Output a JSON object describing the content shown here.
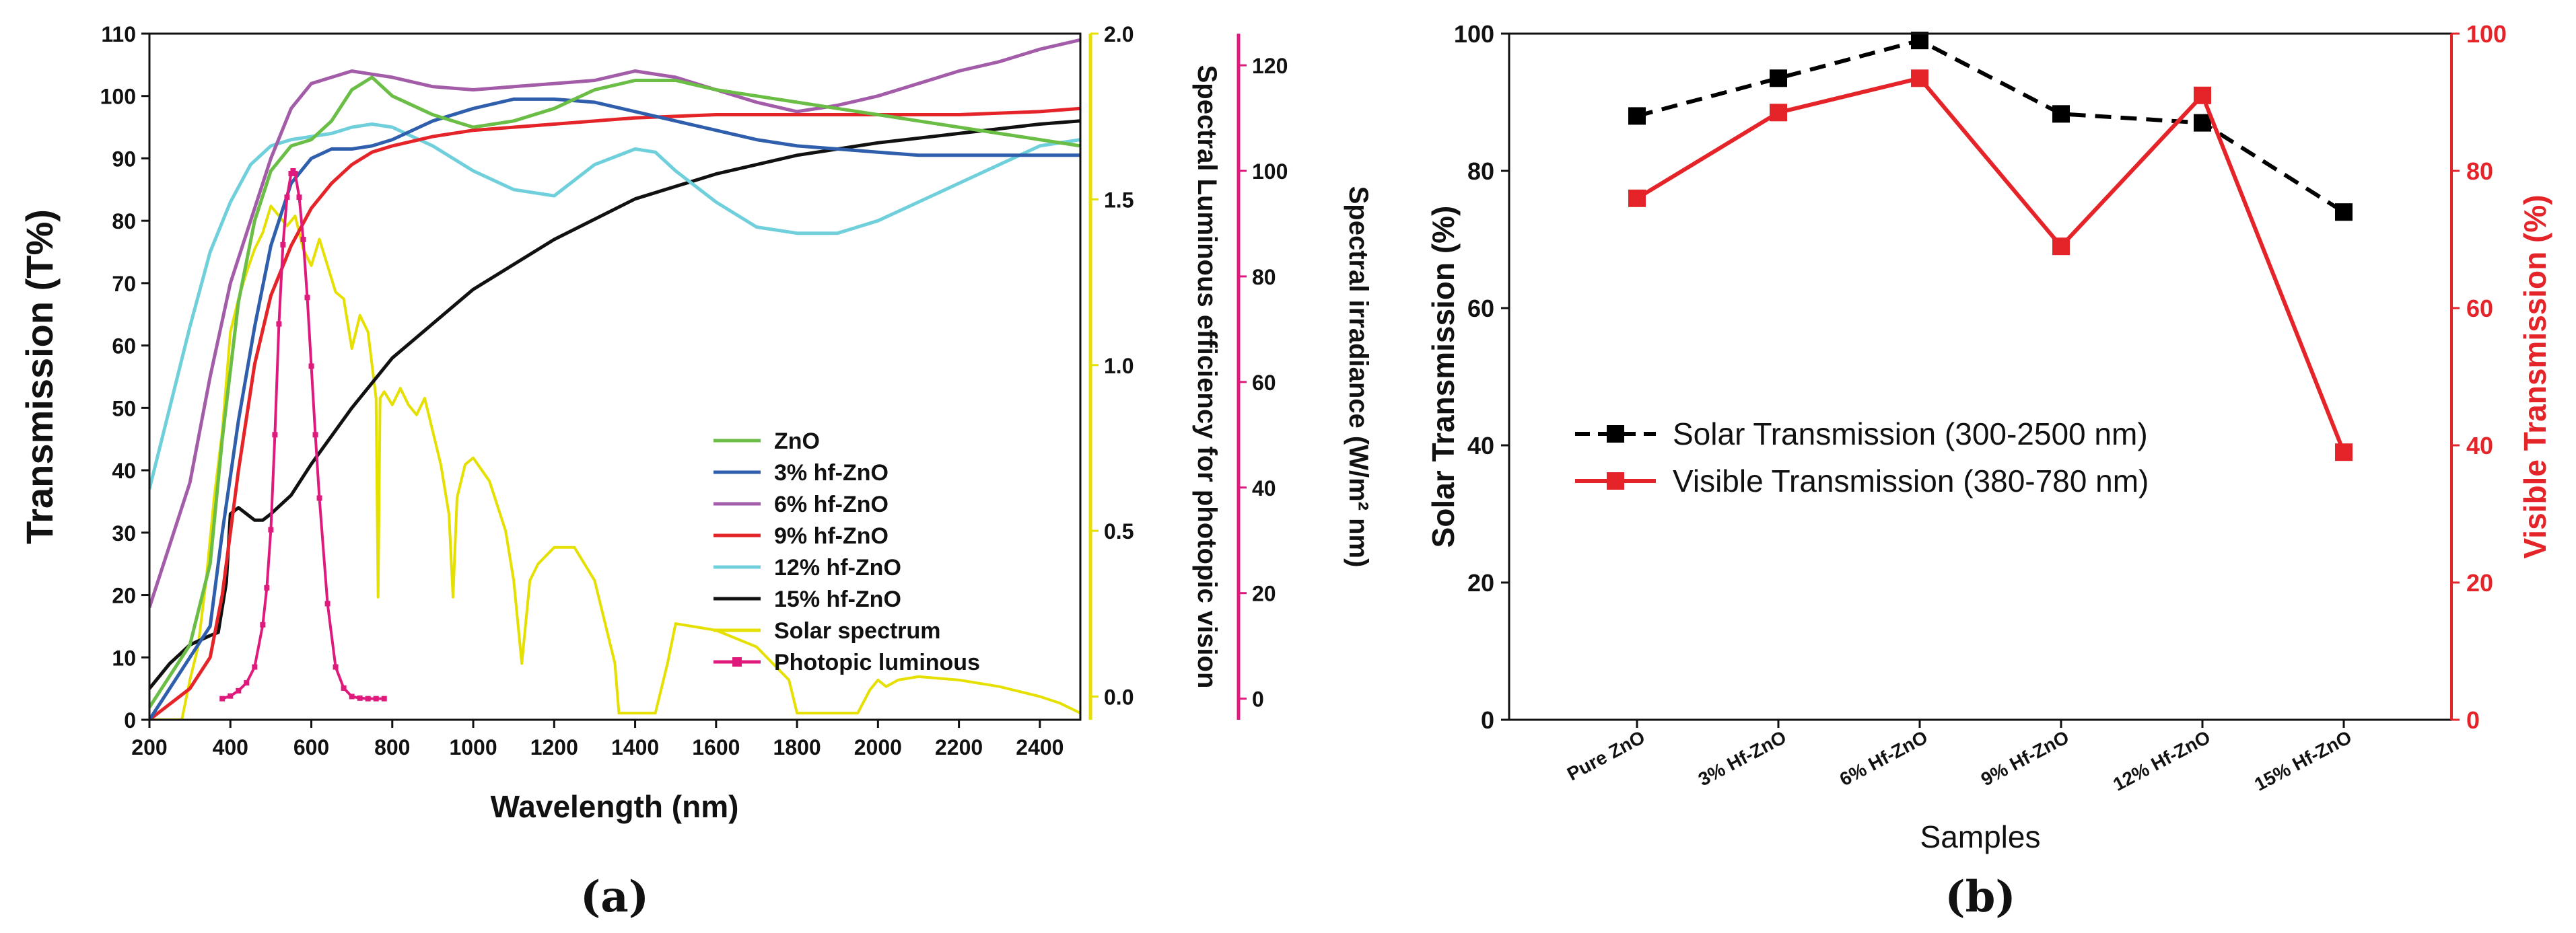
{
  "figure": {
    "panels": [
      {
        "label": "(a)",
        "chart_data": {
          "type": "line",
          "xlabel": "Wavelength (nm)",
          "ylabel": "Transmission (T%)",
          "xlim": [
            200,
            2500
          ],
          "ylim": [
            0,
            110
          ],
          "xticks": [
            200,
            400,
            600,
            800,
            1000,
            1200,
            1400,
            1600,
            1800,
            2000,
            2200,
            2400
          ],
          "yticks": [
            0,
            10,
            20,
            30,
            40,
            50,
            60,
            70,
            80,
            90,
            100,
            110
          ],
          "y2": {
            "label": "Spectral Luminous efficiency for photopic vision",
            "lim": [
              -0.07,
              2.0
            ],
            "ticks": [
              0.0,
              0.5,
              1.0,
              1.5,
              2.0
            ],
            "tick_labels": [
              "0.0",
              "0.5",
              "1.0",
              "1.5",
              "2.0"
            ],
            "color": "#e5e000"
          },
          "y3": {
            "label": "Spectral irradiance  (W/m² nm)",
            "lim": [
              -4,
              126
            ],
            "ticks": [
              0,
              20,
              40,
              60,
              80,
              100,
              120
            ],
            "color": "#e0197d"
          },
          "series": [
            {
              "name": "ZnO",
              "color": "#6abd45",
              "axis": "y",
              "x": [
                200,
                300,
                350,
                380,
                420,
                460,
                500,
                550,
                600,
                650,
                700,
                750,
                800,
                900,
                1000,
                1100,
                1200,
                1300,
                1400,
                1500,
                1600,
                1700,
                1800,
                1900,
                2000,
                2100,
                2200,
                2300,
                2400,
                2500
              ],
              "y": [
                2,
                12,
                25,
                45,
                67,
                80,
                88,
                92,
                93,
                96,
                101,
                103,
                100,
                97,
                95,
                96,
                98,
                101,
                102.5,
                102.5,
                101,
                100,
                99,
                98,
                97,
                96,
                95,
                94,
                93,
                92
              ]
            },
            {
              "name": "3% hf-ZnO",
              "color": "#2f5fac",
              "axis": "y",
              "x": [
                200,
                300,
                350,
                380,
                420,
                460,
                500,
                550,
                600,
                650,
                700,
                750,
                800,
                900,
                1000,
                1100,
                1200,
                1300,
                1400,
                1500,
                1600,
                1700,
                1800,
                1900,
                2000,
                2100,
                2200,
                2300,
                2400,
                2500
              ],
              "y": [
                0,
                10,
                15,
                30,
                48,
                63,
                76,
                86,
                90,
                91.5,
                91.5,
                92,
                93,
                96,
                98,
                99.5,
                99.5,
                99,
                97.5,
                96,
                94.5,
                93,
                92,
                91.5,
                91,
                90.5,
                90.5,
                90.5,
                90.5,
                90.5
              ]
            },
            {
              "name": "6% hf-ZnO",
              "color": "#a35ca8",
              "axis": "y",
              "x": [
                200,
                300,
                350,
                400,
                450,
                500,
                550,
                600,
                650,
                700,
                750,
                800,
                900,
                1000,
                1100,
                1200,
                1300,
                1400,
                1500,
                1600,
                1700,
                1800,
                1900,
                2000,
                2100,
                2200,
                2300,
                2400,
                2500
              ],
              "y": [
                18,
                38,
                55,
                70,
                80,
                90,
                98,
                102,
                103,
                104,
                103.5,
                103,
                101.5,
                101,
                101.5,
                102,
                102.5,
                104,
                103,
                101,
                99,
                97.5,
                98.5,
                100,
                102,
                104,
                105.5,
                107.5,
                109
              ]
            },
            {
              "name": "9% hf-ZnO",
              "color": "#e52429",
              "axis": "y",
              "x": [
                200,
                300,
                350,
                380,
                420,
                460,
                500,
                550,
                600,
                650,
                700,
                750,
                800,
                900,
                1000,
                1200,
                1400,
                1600,
                1800,
                2000,
                2200,
                2400,
                2500
              ],
              "y": [
                0,
                5,
                10,
                20,
                40,
                57,
                68,
                76,
                82,
                86,
                89,
                91,
                92,
                93.5,
                94.5,
                95.5,
                96.5,
                97,
                97,
                97,
                97,
                97.5,
                98
              ]
            },
            {
              "name": "12% hf-ZnO",
              "color": "#6fd0dc",
              "axis": "y",
              "x": [
                200,
                250,
                300,
                350,
                400,
                450,
                500,
                550,
                600,
                650,
                700,
                750,
                800,
                900,
                1000,
                1100,
                1200,
                1300,
                1400,
                1450,
                1500,
                1600,
                1700,
                1800,
                1900,
                2000,
                2100,
                2200,
                2300,
                2400,
                2500
              ],
              "y": [
                37,
                50,
                63,
                75,
                83,
                89,
                92,
                93,
                93.5,
                94,
                95,
                95.5,
                95,
                92,
                88,
                85,
                84,
                89,
                91.5,
                91,
                88,
                83,
                79,
                78,
                78,
                80,
                83,
                86,
                89,
                92,
                93
              ]
            },
            {
              "name": "15% hf-ZnO",
              "color": "#111111",
              "axis": "y",
              "x": [
                200,
                250,
                300,
                350,
                370,
                390,
                400,
                420,
                440,
                460,
                480,
                500,
                550,
                600,
                700,
                800,
                1000,
                1200,
                1400,
                1600,
                1800,
                2000,
                2200,
                2400,
                2500
              ],
              "y": [
                5,
                9,
                12,
                13.5,
                14,
                22,
                33,
                34,
                33,
                32,
                32,
                33,
                36,
                41,
                50,
                58,
                69,
                77,
                83.5,
                87.5,
                90.5,
                92.5,
                94,
                95.5,
                96
              ]
            },
            {
              "name": "Solar spectrum",
              "color": "#e5e000",
              "axis": "y2",
              "x": [
                200,
                280,
                300,
                320,
                340,
                360,
                380,
                400,
                420,
                440,
                460,
                480,
                500,
                520,
                540,
                560,
                580,
                600,
                620,
                640,
                660,
                680,
                700,
                720,
                740,
                760,
                765,
                770,
                780,
                800,
                820,
                840,
                860,
                880,
                900,
                920,
                940,
                950,
                960,
                980,
                1000,
                1040,
                1080,
                1100,
                1120,
                1140,
                1160,
                1200,
                1250,
                1300,
                1350,
                1360,
                1400,
                1450,
                1480,
                1500,
                1550,
                1600,
                1700,
                1780,
                1800,
                1850,
                1900,
                1950,
                1980,
                2000,
                2020,
                2050,
                2100,
                2200,
                2300,
                2400,
                2450,
                2500
              ],
              "y": [
                -0.07,
                -0.07,
                0.05,
                0.15,
                0.35,
                0.6,
                0.8,
                1.1,
                1.2,
                1.28,
                1.35,
                1.4,
                1.48,
                1.45,
                1.42,
                1.45,
                1.35,
                1.3,
                1.38,
                1.3,
                1.22,
                1.2,
                1.05,
                1.15,
                1.1,
                0.9,
                0.3,
                0.9,
                0.92,
                0.88,
                0.93,
                0.88,
                0.85,
                0.9,
                0.8,
                0.7,
                0.55,
                0.3,
                0.6,
                0.7,
                0.72,
                0.65,
                0.5,
                0.35,
                0.1,
                0.35,
                0.4,
                0.45,
                0.45,
                0.35,
                0.1,
                -0.05,
                -0.05,
                -0.05,
                0.1,
                0.22,
                0.21,
                0.2,
                0.15,
                0.05,
                -0.05,
                -0.05,
                -0.05,
                -0.05,
                0.02,
                0.05,
                0.03,
                0.05,
                0.06,
                0.05,
                0.03,
                0.0,
                -0.02,
                -0.05
              ]
            },
            {
              "name": "Photopic luminous",
              "color": "#e0197d",
              "axis": "y3",
              "marker": "square",
              "x": [
                380,
                400,
                420,
                440,
                460,
                480,
                490,
                500,
                510,
                520,
                530,
                540,
                550,
                555,
                560,
                570,
                580,
                590,
                600,
                610,
                620,
                640,
                660,
                680,
                700,
                720,
                740,
                760,
                780
              ],
              "y": [
                0,
                0.5,
                1.5,
                3,
                6,
                14,
                21,
                32,
                50,
                71,
                86,
                95,
                99.5,
                100,
                99.5,
                95,
                87,
                76,
                63,
                50,
                38,
                18,
                6,
                2,
                0.4,
                0.1,
                0,
                0,
                0
              ]
            }
          ],
          "legend": {
            "placement": "center-right",
            "entries": [
              "ZnO",
              "3% hf-ZnO",
              "6% hf-ZnO",
              "9% hf-ZnO",
              "12% hf-ZnO",
              "15% hf-ZnO",
              "Solar spectrum",
              "Photopic luminous"
            ]
          }
        }
      },
      {
        "label": "(b)",
        "chart_data": {
          "type": "line",
          "xlabel": "Samples",
          "ylabel": "Solar Transmission (%)",
          "y2label": "Visible Transmission (%)",
          "categories": [
            "Pure ZnO",
            "3% Hf-ZnO",
            "6% Hf-ZnO",
            "9% Hf-ZnO",
            "12% Hf-ZnO",
            "15% Hf-ZnO"
          ],
          "ylim": [
            0,
            100
          ],
          "y2lim": [
            0,
            100
          ],
          "yticks": [
            0,
            20,
            40,
            60,
            80,
            100
          ],
          "series": [
            {
              "name": "Solar Transmission (300-2500 nm)",
              "axis": "left",
              "color": "#000000",
              "style": "dashed",
              "marker": "square",
              "values": [
                88,
                93.5,
                99,
                88.3,
                87,
                74
              ]
            },
            {
              "name": "Visible Transmission (380-780 nm)",
              "axis": "right",
              "color": "#e52429",
              "style": "solid",
              "marker": "square",
              "values": [
                76,
                88.5,
                93.5,
                69,
                91,
                39
              ]
            }
          ],
          "legend": {
            "placement": "center-left"
          }
        }
      }
    ]
  }
}
